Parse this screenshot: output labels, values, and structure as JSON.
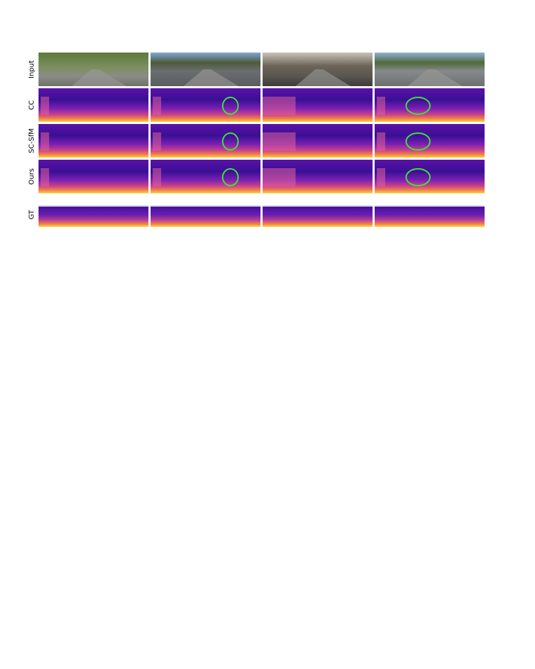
{
  "row_labels": [
    "Input",
    "CC",
    "SC-SfM",
    "Ours",
    "GT"
  ]
}
